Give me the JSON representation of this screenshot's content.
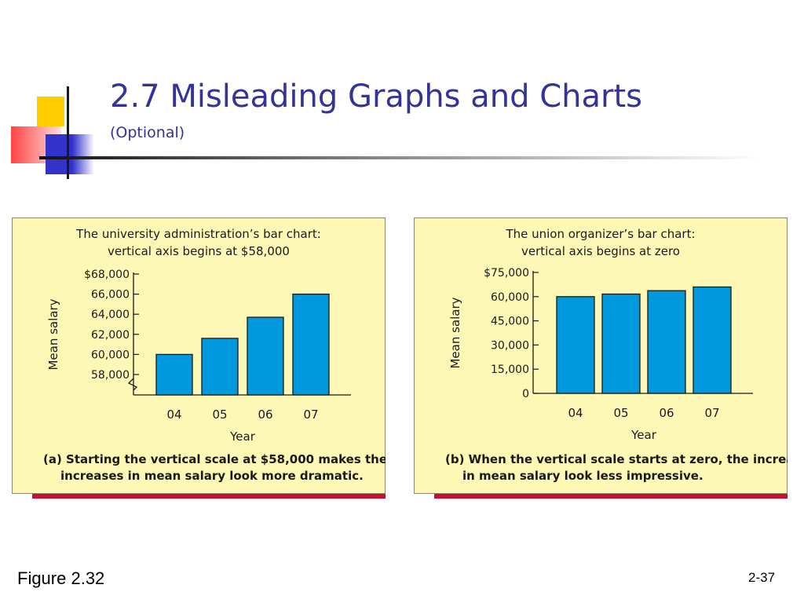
{
  "slide": {
    "title": "2.7 Misleading Graphs and Charts",
    "subtitle": "(Optional)",
    "figure_label": "Figure 2.32",
    "page_number": "2-37"
  },
  "colors": {
    "title": "#333399",
    "panel_bg": "#fdf8b5",
    "panel_shadow": "#c8102e",
    "bar": "#0099dd",
    "bar_stroke": "#1a1a1a"
  },
  "chart_data": [
    {
      "type": "bar",
      "title": "The university administration’s bar chart:",
      "subtitle": "vertical axis begins at $58,000",
      "xlabel": "Year",
      "ylabel": "Mean salary",
      "categories": [
        "04",
        "05",
        "06",
        "07"
      ],
      "values": [
        60000,
        61600,
        63700,
        66000
      ],
      "yticks": [
        58000,
        60000,
        62000,
        64000,
        66000,
        68000
      ],
      "ytick_labels": [
        "58,000",
        "60,000",
        "62,000",
        "64,000",
        "66,000",
        "$68,000"
      ],
      "ylim": [
        58000,
        68000
      ],
      "axis_break": true,
      "caption_line1": "(a) Starting the vertical scale at $58,000 makes the",
      "caption_line2": "increases in mean salary look more dramatic."
    },
    {
      "type": "bar",
      "title": "The union organizer’s bar chart:",
      "subtitle": "vertical axis begins at zero",
      "xlabel": "Year",
      "ylabel": "Mean salary",
      "categories": [
        "04",
        "05",
        "06",
        "07"
      ],
      "values": [
        60000,
        61600,
        63700,
        66000
      ],
      "yticks": [
        0,
        15000,
        30000,
        45000,
        60000,
        75000
      ],
      "ytick_labels": [
        "0",
        "15,000",
        "30,000",
        "45,000",
        "60,000",
        "$75,000"
      ],
      "ylim": [
        0,
        75000
      ],
      "axis_break": false,
      "caption_line1": "(b) When the vertical scale starts at zero, the increases",
      "caption_line2": "in mean salary look less impressive."
    }
  ]
}
